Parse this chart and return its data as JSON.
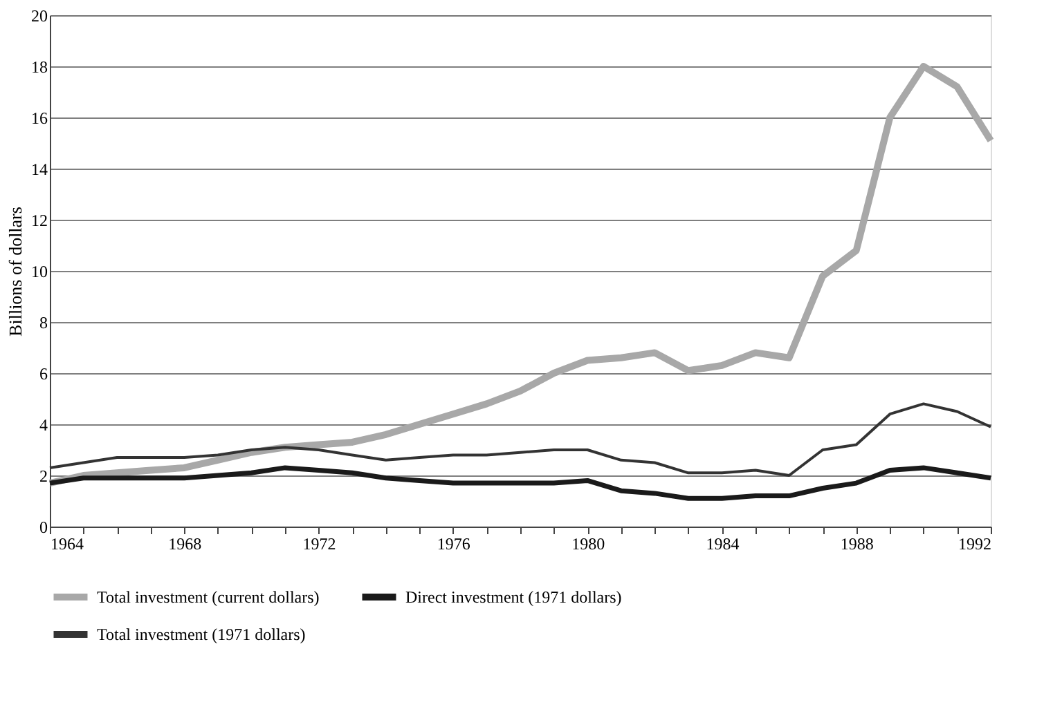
{
  "chart_data": {
    "type": "line",
    "ylabel": "Billions of dollars",
    "x": [
      1964,
      1965,
      1966,
      1967,
      1968,
      1969,
      1970,
      1971,
      1972,
      1973,
      1974,
      1975,
      1976,
      1977,
      1978,
      1979,
      1980,
      1981,
      1982,
      1983,
      1984,
      1985,
      1986,
      1987,
      1988,
      1989,
      1990,
      1991,
      1992
    ],
    "series": [
      {
        "name": "Total investment (current dollars)",
        "color": "#a8a8a8",
        "values": [
          1.7,
          2.0,
          2.1,
          2.2,
          2.3,
          2.6,
          2.9,
          3.1,
          3.2,
          3.3,
          3.6,
          4.0,
          4.4,
          4.8,
          5.3,
          6.0,
          6.5,
          6.6,
          6.8,
          6.1,
          6.3,
          6.8,
          6.6,
          9.8,
          10.8,
          16.0,
          18.0,
          17.2,
          15.1
        ]
      },
      {
        "name": "Direct investment (1971 dollars)",
        "color": "#1a1a1a",
        "values": [
          1.7,
          1.9,
          1.9,
          1.9,
          1.9,
          2.0,
          2.1,
          2.3,
          2.2,
          2.1,
          1.9,
          1.8,
          1.7,
          1.7,
          1.7,
          1.7,
          1.8,
          1.4,
          1.3,
          1.1,
          1.1,
          1.2,
          1.2,
          1.5,
          1.7,
          2.2,
          2.3,
          2.1,
          1.9
        ]
      },
      {
        "name": "Total investment (1971 dollars)",
        "color": "#333333",
        "values": [
          2.3,
          2.5,
          2.7,
          2.7,
          2.7,
          2.8,
          3.0,
          3.1,
          3.0,
          2.8,
          2.6,
          2.7,
          2.8,
          2.8,
          2.9,
          3.0,
          3.0,
          2.6,
          2.5,
          2.1,
          2.1,
          2.2,
          2.0,
          3.0,
          3.2,
          4.4,
          4.8,
          4.5,
          3.9
        ]
      }
    ],
    "xlim": [
      1964,
      1992
    ],
    "xticks": [
      1964,
      {
        "value": 1965,
        "label": null
      },
      {
        "value": 1966,
        "label": null
      },
      {
        "value": 1967,
        "label": null
      },
      1968,
      {
        "value": 1969,
        "label": null
      },
      {
        "value": 1970,
        "label": null
      },
      {
        "value": 1971,
        "label": null
      },
      1972,
      {
        "value": 1973,
        "label": null
      },
      {
        "value": 1974,
        "label": null
      },
      {
        "value": 1975,
        "label": null
      },
      1976,
      {
        "value": 1977,
        "label": null
      },
      {
        "value": 1978,
        "label": null
      },
      {
        "value": 1979,
        "label": null
      },
      1980,
      {
        "value": 1981,
        "label": null
      },
      {
        "value": 1982,
        "label": null
      },
      {
        "value": 1983,
        "label": null
      },
      1984,
      {
        "value": 1985,
        "label": null
      },
      {
        "value": 1986,
        "label": null
      },
      {
        "value": 1987,
        "label": null
      },
      1988,
      {
        "value": 1989,
        "label": null
      },
      {
        "value": 1990,
        "label": null
      },
      {
        "value": 1991,
        "label": null
      },
      1992
    ],
    "ylim": [
      0,
      20
    ],
    "yticks": [
      0,
      2,
      4,
      6,
      8,
      10,
      12,
      14,
      16,
      18,
      20
    ],
    "grid": "y",
    "legend": "bottom",
    "marker": "none",
    "line_style": "solid"
  }
}
